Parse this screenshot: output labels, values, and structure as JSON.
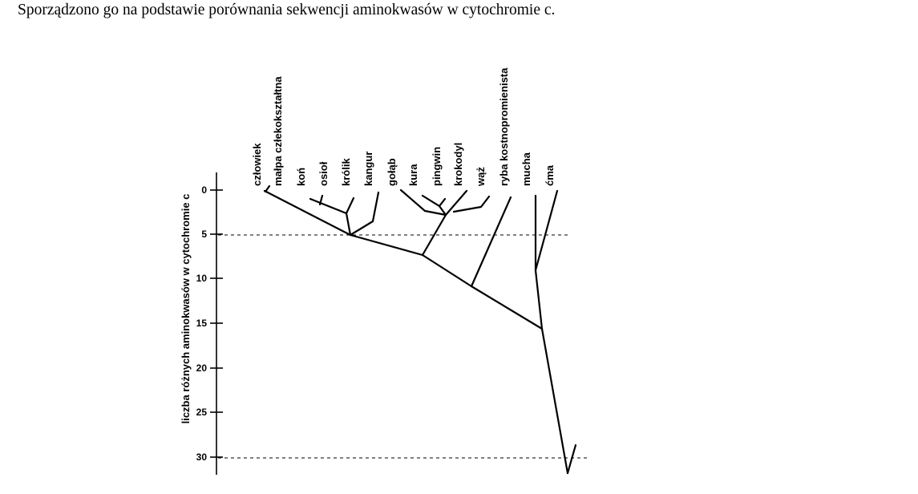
{
  "caption": "Sporządzono go na podstawie porównania sekwencji aminokwasów w cytochromie c.",
  "diagram": {
    "axis_title": "liczba różnych aminokwasów w cytochromie c",
    "ticks": [
      "0",
      "5",
      "10",
      "15",
      "20",
      "25",
      "30"
    ],
    "taxa": [
      "człowiek",
      "małpa człekokształtna",
      "koń",
      "osioł",
      "królik",
      "kangur",
      "gołąb",
      "kura",
      "pingwin",
      "krokodyl",
      "wąż",
      "ryba kostnopromienista",
      "mucha",
      "ćma"
    ],
    "dashed_guides_at": [
      5,
      30
    ]
  }
}
